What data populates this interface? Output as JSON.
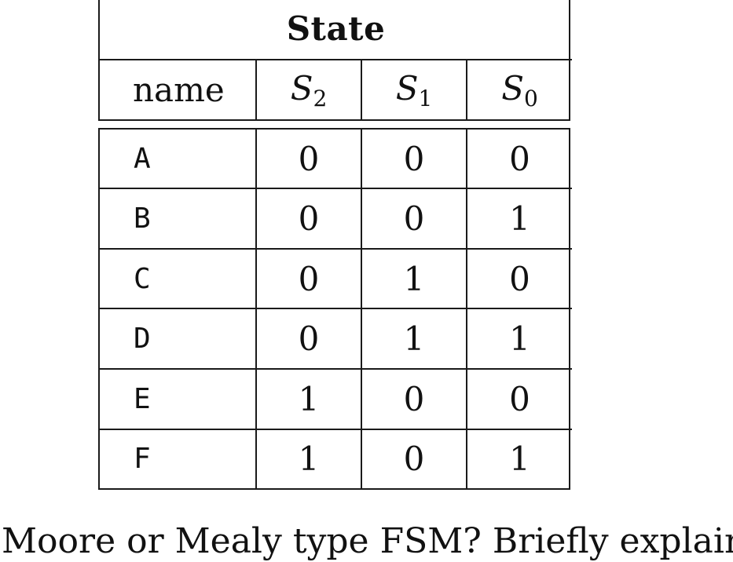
{
  "table": {
    "title": "State",
    "columns": {
      "name": "name",
      "s2": {
        "base": "S",
        "sub": "2"
      },
      "s1": {
        "base": "S",
        "sub": "1"
      },
      "s0": {
        "base": "S",
        "sub": "0"
      }
    },
    "rows": [
      {
        "name": "A",
        "s2": "0",
        "s1": "0",
        "s0": "0"
      },
      {
        "name": "B",
        "s2": "0",
        "s1": "0",
        "s0": "1"
      },
      {
        "name": "C",
        "s2": "0",
        "s1": "1",
        "s0": "0"
      },
      {
        "name": "D",
        "s2": "0",
        "s1": "1",
        "s0": "1"
      },
      {
        "name": "E",
        "s2": "1",
        "s1": "0",
        "s0": "0"
      },
      {
        "name": "F",
        "s2": "1",
        "s1": "0",
        "s0": "1"
      }
    ]
  },
  "question": "Moore or Mealy type FSM? Briefly explain."
}
